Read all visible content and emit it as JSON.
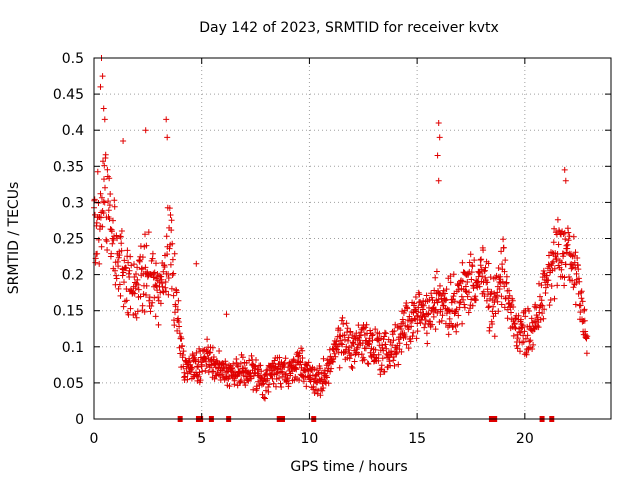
{
  "chart_data": {
    "type": "scatter",
    "title": "Day 142 of 2023, SRMTID for receiver kvtx",
    "xlabel": "GPS time / hours",
    "ylabel": "SRMTID / TECUs",
    "xlim": [
      0,
      24
    ],
    "ylim": [
      0,
      0.5
    ],
    "xticks": [
      0,
      5,
      10,
      15,
      20
    ],
    "xtick_labels": [
      "0",
      "5",
      "10",
      "15",
      "20"
    ],
    "yticks": [
      0,
      0.05,
      0.1,
      0.15,
      0.2,
      0.25,
      0.3,
      0.35,
      0.4,
      0.45,
      0.5
    ],
    "ytick_labels": [
      "0",
      "0.05",
      "0.1",
      "0.15",
      "0.2",
      "0.25",
      "0.3",
      "0.35",
      "0.4",
      "0.45",
      "0.5"
    ],
    "grid": true,
    "marker": "plus",
    "series_color": "#e00000",
    "zero_markers_x": [
      4.0,
      4.85,
      4.95,
      5.45,
      6.25,
      8.6,
      8.75,
      10.2,
      18.45,
      18.6,
      20.8,
      21.25
    ],
    "series_envelope": {
      "name": "SRMTID",
      "x": [
        0.0,
        0.5,
        1.0,
        1.5,
        2.0,
        2.5,
        3.0,
        3.5,
        3.9,
        4.2,
        4.8,
        5.2,
        5.8,
        6.5,
        7.0,
        7.5,
        8.0,
        8.5,
        9.0,
        9.5,
        10.0,
        10.5,
        11.0,
        11.5,
        12.0,
        12.5,
        13.0,
        13.5,
        14.0,
        14.5,
        15.0,
        15.5,
        16.0,
        16.5,
        17.0,
        17.5,
        18.0,
        18.5,
        19.0,
        19.5,
        20.0,
        20.5,
        21.0,
        21.5,
        22.0,
        22.5,
        22.9
      ],
      "center": [
        0.25,
        0.32,
        0.22,
        0.2,
        0.18,
        0.2,
        0.17,
        0.25,
        0.15,
        0.07,
        0.07,
        0.09,
        0.07,
        0.06,
        0.07,
        0.06,
        0.05,
        0.07,
        0.06,
        0.08,
        0.06,
        0.05,
        0.08,
        0.11,
        0.1,
        0.11,
        0.1,
        0.09,
        0.1,
        0.13,
        0.15,
        0.14,
        0.17,
        0.16,
        0.17,
        0.19,
        0.2,
        0.15,
        0.2,
        0.13,
        0.12,
        0.13,
        0.2,
        0.22,
        0.23,
        0.2,
        0.1
      ],
      "spread": [
        0.06,
        0.08,
        0.06,
        0.05,
        0.05,
        0.05,
        0.04,
        0.06,
        0.05,
        0.02,
        0.02,
        0.02,
        0.02,
        0.02,
        0.02,
        0.02,
        0.02,
        0.02,
        0.02,
        0.02,
        0.02,
        0.02,
        0.02,
        0.03,
        0.03,
        0.03,
        0.03,
        0.03,
        0.03,
        0.03,
        0.03,
        0.03,
        0.04,
        0.04,
        0.04,
        0.04,
        0.04,
        0.04,
        0.04,
        0.03,
        0.03,
        0.03,
        0.04,
        0.05,
        0.05,
        0.05,
        0.03
      ],
      "spikes": [
        {
          "x": 0.35,
          "y": 0.5
        },
        {
          "x": 0.4,
          "y": 0.475
        },
        {
          "x": 0.3,
          "y": 0.46
        },
        {
          "x": 0.45,
          "y": 0.43
        },
        {
          "x": 0.5,
          "y": 0.415
        },
        {
          "x": 2.4,
          "y": 0.4
        },
        {
          "x": 3.35,
          "y": 0.415
        },
        {
          "x": 3.4,
          "y": 0.39
        },
        {
          "x": 1.35,
          "y": 0.385
        },
        {
          "x": 16.0,
          "y": 0.41
        },
        {
          "x": 16.05,
          "y": 0.39
        },
        {
          "x": 15.95,
          "y": 0.365
        },
        {
          "x": 16.0,
          "y": 0.33
        },
        {
          "x": 21.85,
          "y": 0.345
        },
        {
          "x": 21.9,
          "y": 0.33
        },
        {
          "x": 4.75,
          "y": 0.215
        },
        {
          "x": 6.15,
          "y": 0.145
        }
      ]
    }
  }
}
